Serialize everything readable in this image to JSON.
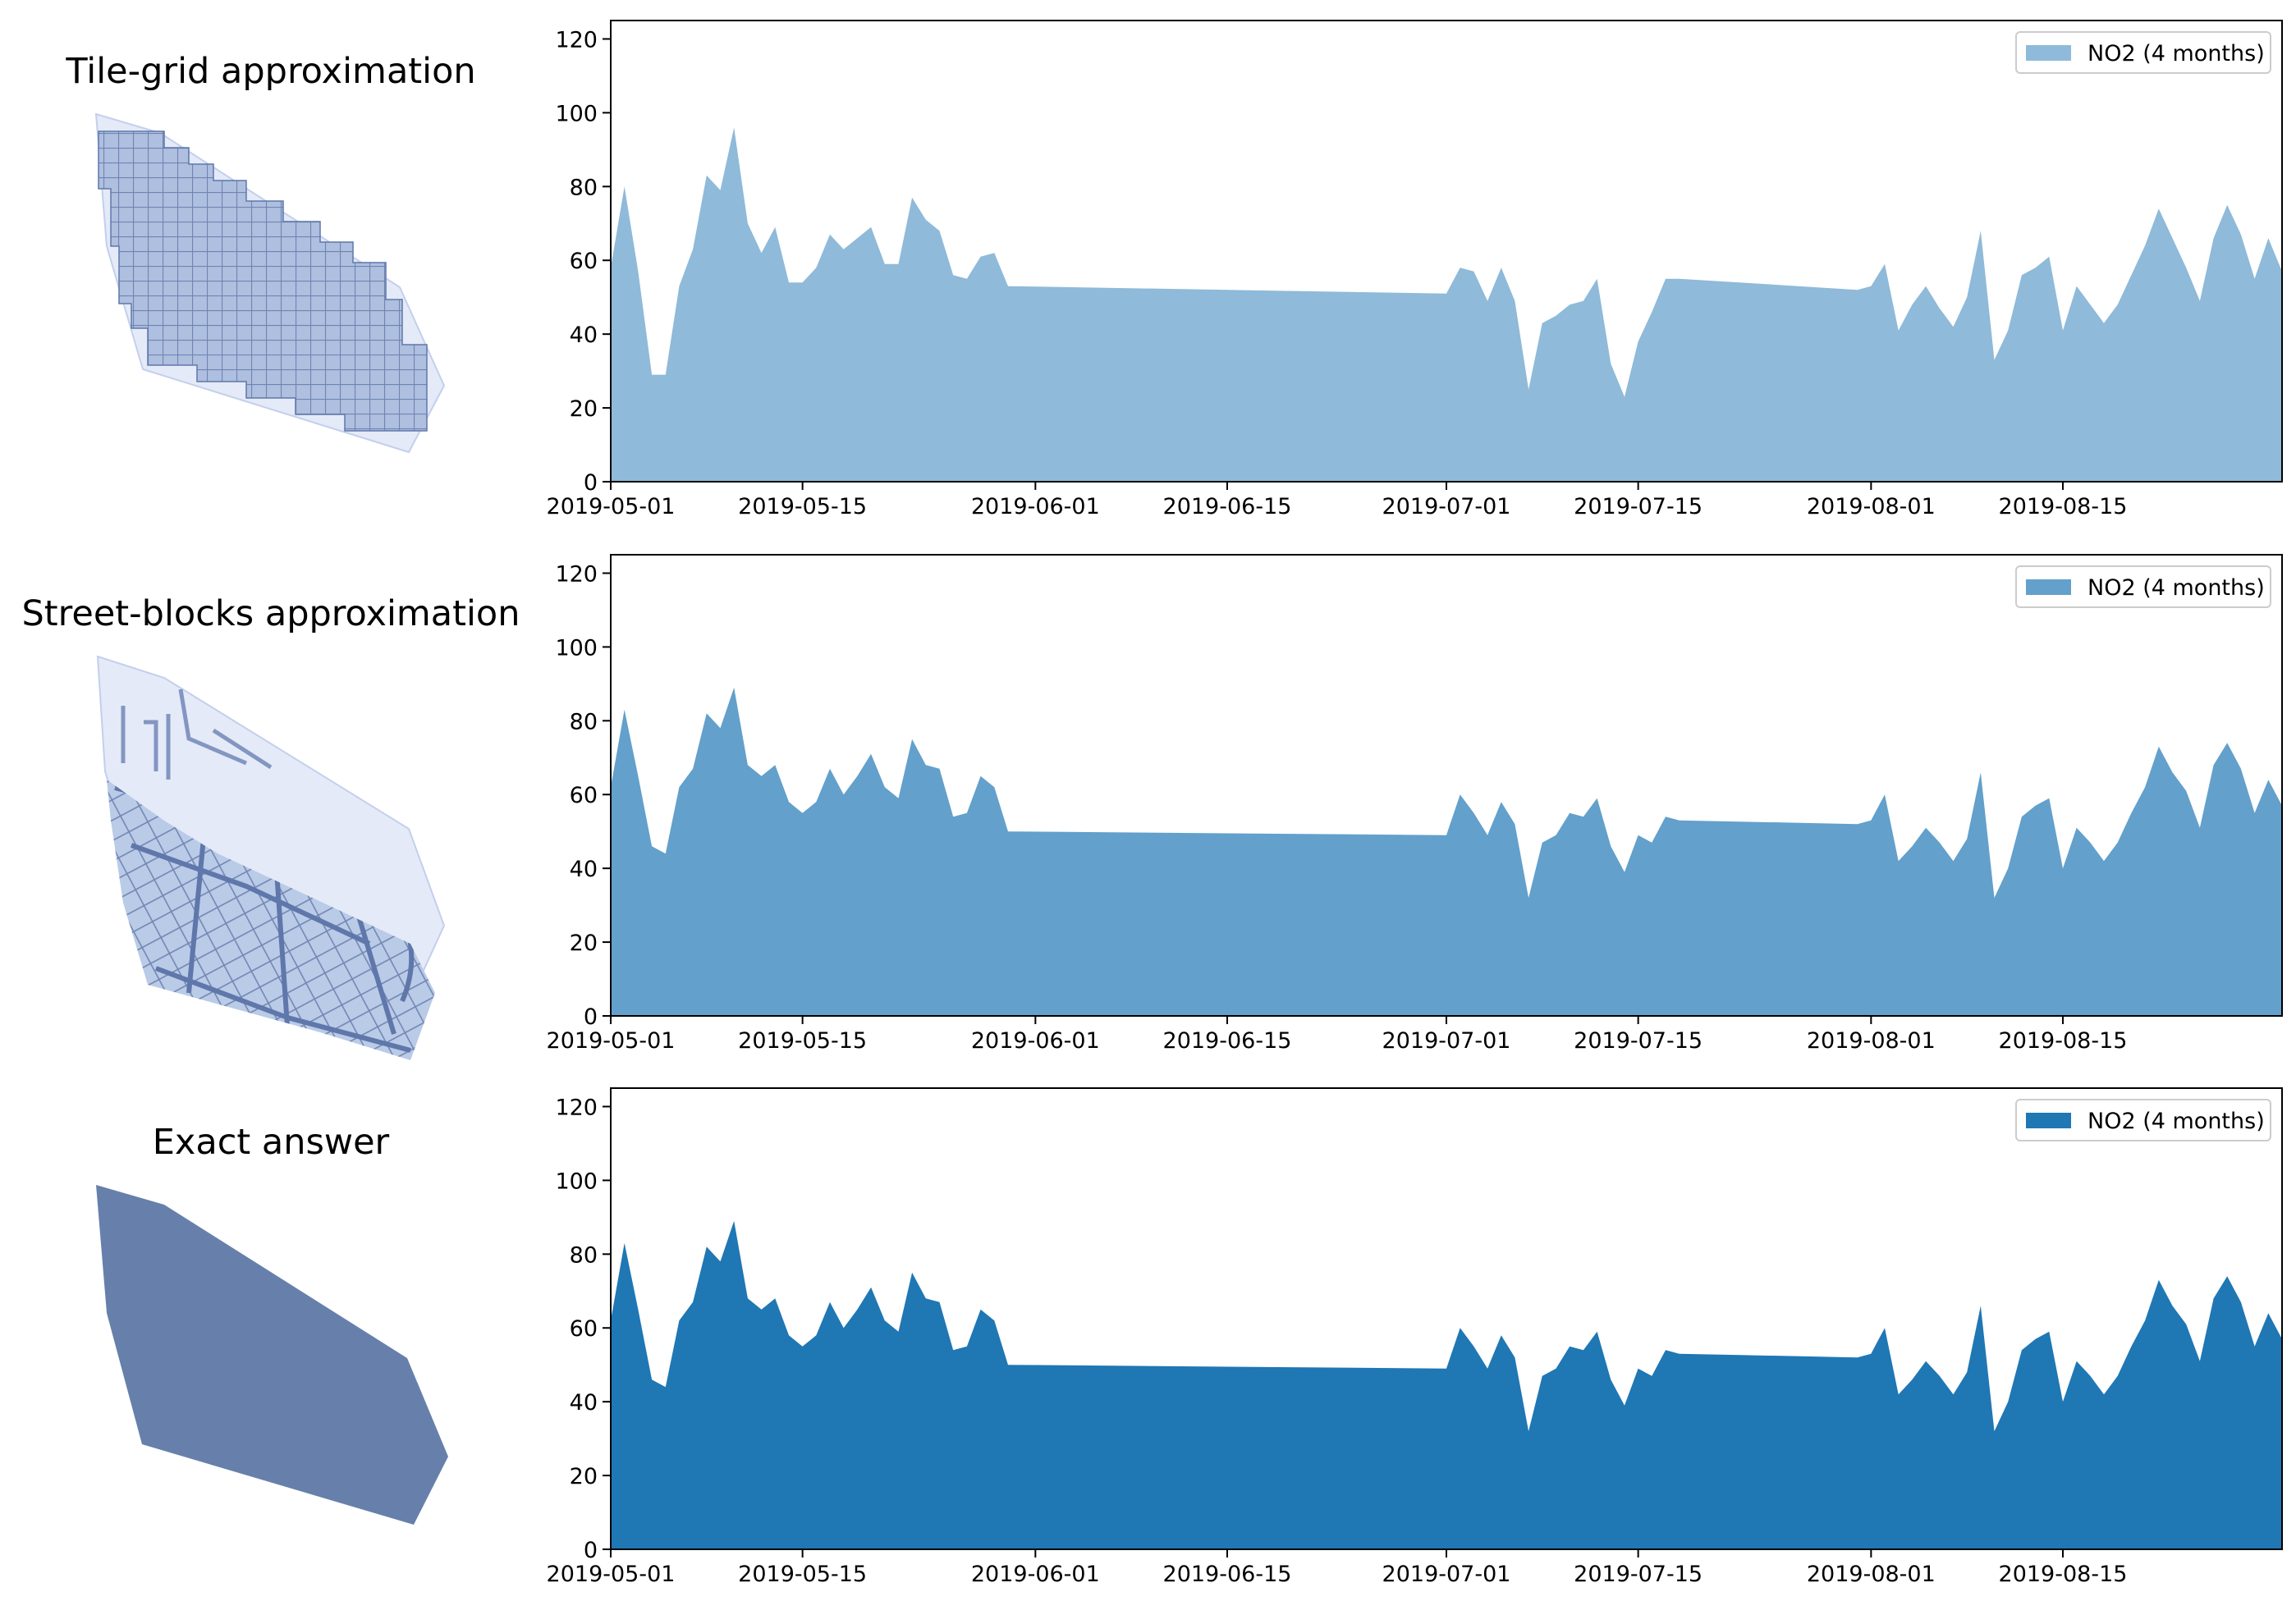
{
  "figure": {
    "row_titles": [
      "Tile-grid approximation",
      "Street-blocks approximation",
      "Exact answer"
    ]
  },
  "colors": {
    "area_1": "#8fbad9",
    "area_2": "#63a0cb",
    "area_3": "#1f77b4",
    "region": "#6680ab",
    "region_light": "#c9d5ea"
  },
  "chart_data": [
    {
      "type": "area",
      "title": "Tile-grid approximation",
      "legend": "NO2 (4 months)",
      "legend_position": "top-right",
      "x_tick_labels": [
        "2019-05-01",
        "2019-05-15",
        "2019-06-01",
        "2019-06-15",
        "2019-07-01",
        "2019-07-15",
        "2019-08-01",
        "2019-08-15"
      ],
      "y_ticks": [
        0,
        20,
        40,
        60,
        80,
        100,
        120
      ],
      "xlim": [
        "2019-05-01",
        "2019-08-31"
      ],
      "ylim": [
        0,
        125
      ],
      "x": [
        "2019-05-01",
        "2019-05-02",
        "2019-05-03",
        "2019-05-04",
        "2019-05-05",
        "2019-05-06",
        "2019-05-07",
        "2019-05-08",
        "2019-05-09",
        "2019-05-10",
        "2019-05-11",
        "2019-05-12",
        "2019-05-13",
        "2019-05-14",
        "2019-05-15",
        "2019-05-16",
        "2019-05-17",
        "2019-05-18",
        "2019-05-19",
        "2019-05-20",
        "2019-05-21",
        "2019-05-22",
        "2019-05-23",
        "2019-05-24",
        "2019-05-25",
        "2019-05-26",
        "2019-05-27",
        "2019-05-28",
        "2019-05-29",
        "2019-05-30",
        "2019-07-01",
        "2019-07-02",
        "2019-07-03",
        "2019-07-04",
        "2019-07-05",
        "2019-07-06",
        "2019-07-07",
        "2019-07-08",
        "2019-07-09",
        "2019-07-10",
        "2019-07-11",
        "2019-07-12",
        "2019-07-13",
        "2019-07-14",
        "2019-07-15",
        "2019-07-16",
        "2019-07-17",
        "2019-07-18",
        "2019-07-31",
        "2019-08-01",
        "2019-08-02",
        "2019-08-03",
        "2019-08-04",
        "2019-08-05",
        "2019-08-06",
        "2019-08-07",
        "2019-08-08",
        "2019-08-09",
        "2019-08-10",
        "2019-08-11",
        "2019-08-12",
        "2019-08-13",
        "2019-08-14",
        "2019-08-15",
        "2019-08-16",
        "2019-08-17",
        "2019-08-18",
        "2019-08-19",
        "2019-08-20",
        "2019-08-21",
        "2019-08-22",
        "2019-08-23",
        "2019-08-24",
        "2019-08-25",
        "2019-08-26",
        "2019-08-27",
        "2019-08-28",
        "2019-08-29",
        "2019-08-30",
        "2019-08-31"
      ],
      "y": [
        58,
        80,
        57,
        29,
        29,
        53,
        63,
        83,
        79,
        96,
        70,
        62,
        69,
        54,
        54,
        58,
        67,
        63,
        66,
        69,
        59,
        59,
        77,
        71,
        68,
        56,
        55,
        61,
        62,
        53,
        51,
        58,
        57,
        49,
        58,
        49,
        25,
        43,
        45,
        48,
        49,
        55,
        32,
        23,
        38,
        46,
        55,
        55,
        52,
        53,
        59,
        41,
        48,
        53,
        47,
        42,
        50,
        68,
        33,
        41,
        56,
        58,
        61,
        41,
        53,
        48,
        43,
        48,
        56,
        64,
        74,
        66,
        58,
        49,
        66,
        75,
        67,
        55,
        66,
        57
      ]
    },
    {
      "type": "area",
      "title": "Street-blocks approximation",
      "legend": "NO2 (4 months)",
      "legend_position": "top-right",
      "x_tick_labels": [
        "2019-05-01",
        "2019-05-15",
        "2019-06-01",
        "2019-06-15",
        "2019-07-01",
        "2019-07-15",
        "2019-08-01",
        "2019-08-15"
      ],
      "y_ticks": [
        0,
        20,
        40,
        60,
        80,
        100,
        120
      ],
      "xlim": [
        "2019-05-01",
        "2019-08-31"
      ],
      "ylim": [
        0,
        125
      ],
      "x": [
        "2019-05-01",
        "2019-05-02",
        "2019-05-03",
        "2019-05-04",
        "2019-05-05",
        "2019-05-06",
        "2019-05-07",
        "2019-05-08",
        "2019-05-09",
        "2019-05-10",
        "2019-05-11",
        "2019-05-12",
        "2019-05-13",
        "2019-05-14",
        "2019-05-15",
        "2019-05-16",
        "2019-05-17",
        "2019-05-18",
        "2019-05-19",
        "2019-05-20",
        "2019-05-21",
        "2019-05-22",
        "2019-05-23",
        "2019-05-24",
        "2019-05-25",
        "2019-05-26",
        "2019-05-27",
        "2019-05-28",
        "2019-05-29",
        "2019-05-30",
        "2019-07-01",
        "2019-07-02",
        "2019-07-03",
        "2019-07-04",
        "2019-07-05",
        "2019-07-06",
        "2019-07-07",
        "2019-07-08",
        "2019-07-09",
        "2019-07-10",
        "2019-07-11",
        "2019-07-12",
        "2019-07-13",
        "2019-07-14",
        "2019-07-15",
        "2019-07-16",
        "2019-07-17",
        "2019-07-18",
        "2019-07-31",
        "2019-08-01",
        "2019-08-02",
        "2019-08-03",
        "2019-08-04",
        "2019-08-05",
        "2019-08-06",
        "2019-08-07",
        "2019-08-08",
        "2019-08-09",
        "2019-08-10",
        "2019-08-11",
        "2019-08-12",
        "2019-08-13",
        "2019-08-14",
        "2019-08-15",
        "2019-08-16",
        "2019-08-17",
        "2019-08-18",
        "2019-08-19",
        "2019-08-20",
        "2019-08-21",
        "2019-08-22",
        "2019-08-23",
        "2019-08-24",
        "2019-08-25",
        "2019-08-26",
        "2019-08-27",
        "2019-08-28",
        "2019-08-29",
        "2019-08-30",
        "2019-08-31"
      ],
      "y": [
        62,
        83,
        65,
        46,
        44,
        62,
        67,
        82,
        78,
        89,
        68,
        65,
        68,
        58,
        55,
        58,
        67,
        60,
        65,
        71,
        62,
        59,
        75,
        68,
        67,
        54,
        55,
        65,
        62,
        50,
        49,
        60,
        55,
        49,
        58,
        52,
        32,
        47,
        49,
        55,
        54,
        59,
        46,
        39,
        49,
        47,
        54,
        53,
        52,
        53,
        60,
        42,
        46,
        51,
        47,
        42,
        48,
        66,
        32,
        40,
        54,
        57,
        59,
        40,
        51,
        47,
        42,
        47,
        55,
        62,
        73,
        66,
        61,
        51,
        68,
        74,
        67,
        55,
        64,
        57
      ]
    },
    {
      "type": "area",
      "title": "Exact answer",
      "legend": "NO2 (4 months)",
      "legend_position": "top-right",
      "x_tick_labels": [
        "2019-05-01",
        "2019-05-15",
        "2019-06-01",
        "2019-06-15",
        "2019-07-01",
        "2019-07-15",
        "2019-08-01",
        "2019-08-15"
      ],
      "y_ticks": [
        0,
        20,
        40,
        60,
        80,
        100,
        120
      ],
      "xlim": [
        "2019-05-01",
        "2019-08-31"
      ],
      "ylim": [
        0,
        125
      ],
      "x": [
        "2019-05-01",
        "2019-05-02",
        "2019-05-03",
        "2019-05-04",
        "2019-05-05",
        "2019-05-06",
        "2019-05-07",
        "2019-05-08",
        "2019-05-09",
        "2019-05-10",
        "2019-05-11",
        "2019-05-12",
        "2019-05-13",
        "2019-05-14",
        "2019-05-15",
        "2019-05-16",
        "2019-05-17",
        "2019-05-18",
        "2019-05-19",
        "2019-05-20",
        "2019-05-21",
        "2019-05-22",
        "2019-05-23",
        "2019-05-24",
        "2019-05-25",
        "2019-05-26",
        "2019-05-27",
        "2019-05-28",
        "2019-05-29",
        "2019-05-30",
        "2019-07-01",
        "2019-07-02",
        "2019-07-03",
        "2019-07-04",
        "2019-07-05",
        "2019-07-06",
        "2019-07-07",
        "2019-07-08",
        "2019-07-09",
        "2019-07-10",
        "2019-07-11",
        "2019-07-12",
        "2019-07-13",
        "2019-07-14",
        "2019-07-15",
        "2019-07-16",
        "2019-07-17",
        "2019-07-18",
        "2019-07-31",
        "2019-08-01",
        "2019-08-02",
        "2019-08-03",
        "2019-08-04",
        "2019-08-05",
        "2019-08-06",
        "2019-08-07",
        "2019-08-08",
        "2019-08-09",
        "2019-08-10",
        "2019-08-11",
        "2019-08-12",
        "2019-08-13",
        "2019-08-14",
        "2019-08-15",
        "2019-08-16",
        "2019-08-17",
        "2019-08-18",
        "2019-08-19",
        "2019-08-20",
        "2019-08-21",
        "2019-08-22",
        "2019-08-23",
        "2019-08-24",
        "2019-08-25",
        "2019-08-26",
        "2019-08-27",
        "2019-08-28",
        "2019-08-29",
        "2019-08-30",
        "2019-08-31"
      ],
      "y": [
        62,
        83,
        65,
        46,
        44,
        62,
        67,
        82,
        78,
        89,
        68,
        65,
        68,
        58,
        55,
        58,
        67,
        60,
        65,
        71,
        62,
        59,
        75,
        68,
        67,
        54,
        55,
        65,
        62,
        50,
        49,
        60,
        55,
        49,
        58,
        52,
        32,
        47,
        49,
        55,
        54,
        59,
        46,
        39,
        49,
        47,
        54,
        53,
        52,
        53,
        60,
        42,
        46,
        51,
        47,
        42,
        48,
        66,
        32,
        40,
        54,
        57,
        59,
        40,
        51,
        47,
        42,
        47,
        55,
        62,
        73,
        66,
        61,
        51,
        68,
        74,
        67,
        55,
        64,
        57
      ]
    }
  ]
}
